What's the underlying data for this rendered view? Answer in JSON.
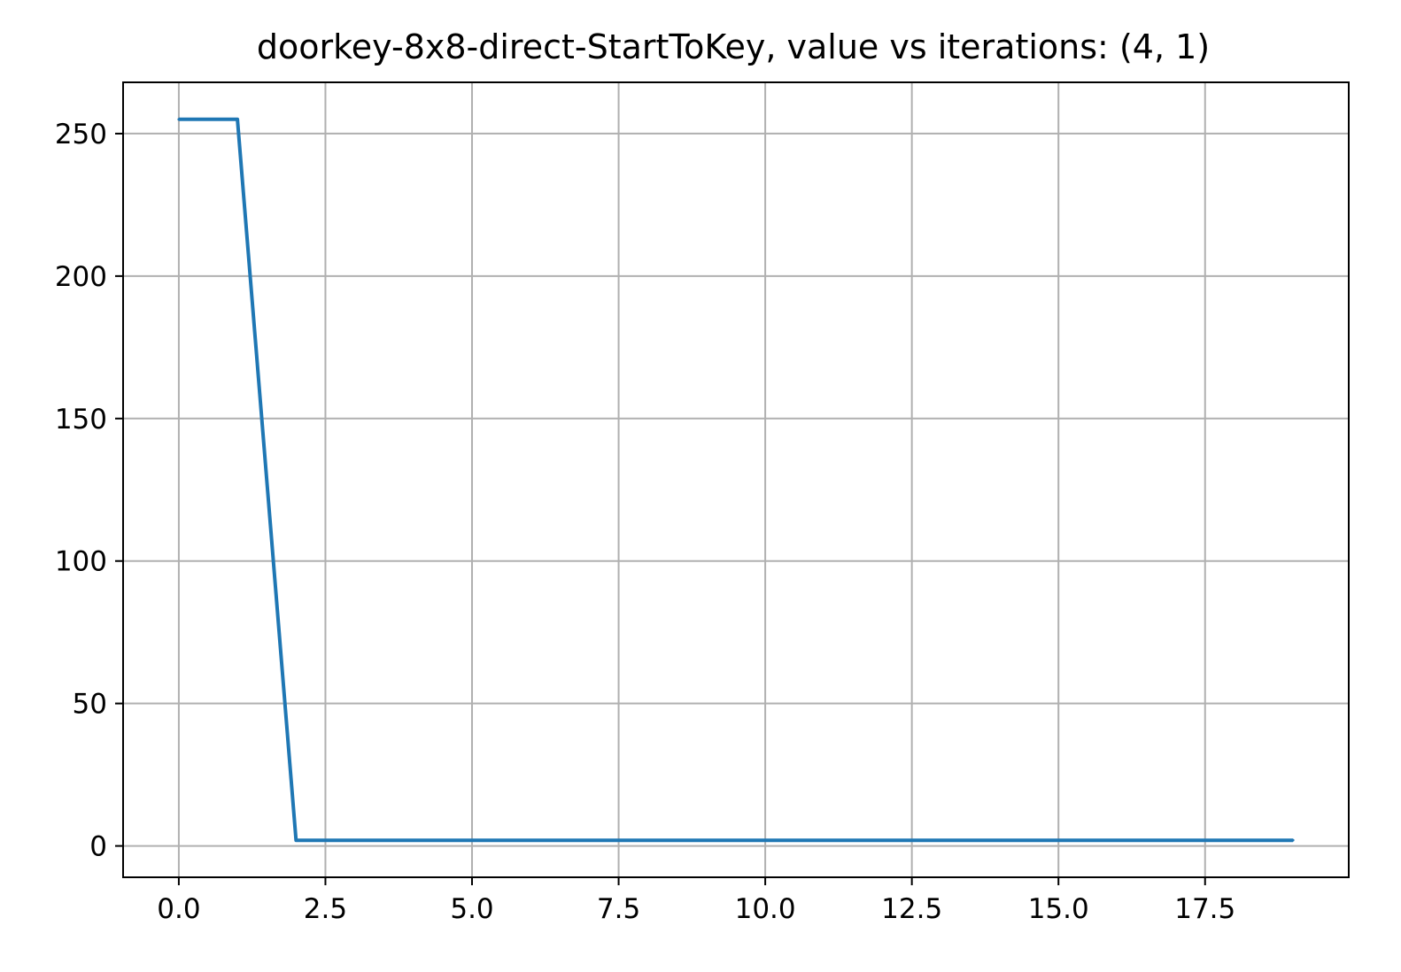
{
  "chart_data": {
    "type": "line",
    "title": "doorkey-8x8-direct-StartToKey, value vs iterations: (4, 1)",
    "xlabel": "",
    "ylabel": "",
    "xlim": [
      -0.95,
      19.95
    ],
    "ylim": [
      -11,
      268
    ],
    "xticks": [
      0.0,
      2.5,
      5.0,
      7.5,
      10.0,
      12.5,
      15.0,
      17.5
    ],
    "xtick_labels": [
      "0.0",
      "2.5",
      "5.0",
      "7.5",
      "10.0",
      "12.5",
      "15.0",
      "17.5"
    ],
    "yticks": [
      0,
      50,
      100,
      150,
      200,
      250
    ],
    "ytick_labels": [
      "0",
      "50",
      "100",
      "150",
      "200",
      "250"
    ],
    "grid": true,
    "legend": "none",
    "series": [
      {
        "color": "#1f77b4",
        "x": [
          0,
          1,
          2,
          3,
          4,
          5,
          6,
          7,
          8,
          9,
          10,
          11,
          12,
          13,
          14,
          15,
          16,
          17,
          18,
          19
        ],
        "y": [
          255,
          255,
          2,
          2,
          2,
          2,
          2,
          2,
          2,
          2,
          2,
          2,
          2,
          2,
          2,
          2,
          2,
          2,
          2,
          2
        ]
      }
    ]
  }
}
